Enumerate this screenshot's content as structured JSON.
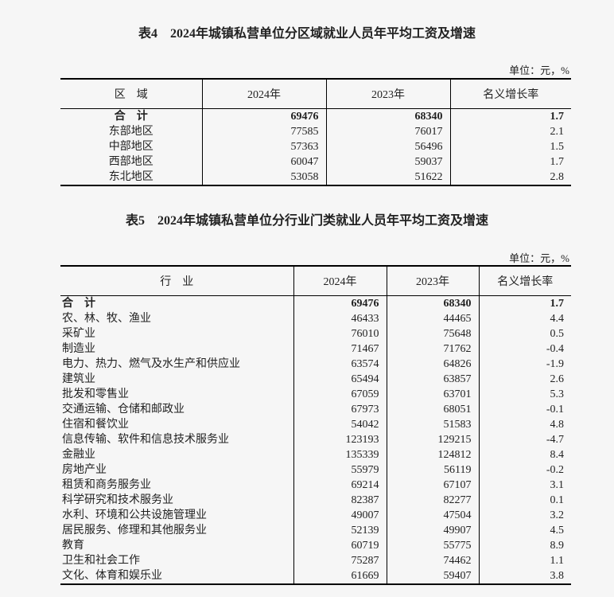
{
  "table4": {
    "title": "表4　2024年城镇私营单位分区域就业人员年平均工资及增速",
    "unit": "单位：元，%",
    "headers": [
      "区　域",
      "2024年",
      "2023年",
      "名义增长率"
    ],
    "rows": [
      [
        "合　计",
        "69476",
        "68340",
        "1.7"
      ],
      [
        "东部地区",
        "77585",
        "76017",
        "2.1"
      ],
      [
        "中部地区",
        "57363",
        "56496",
        "1.5"
      ],
      [
        "西部地区",
        "60047",
        "59037",
        "1.7"
      ],
      [
        "东北地区",
        "53058",
        "51622",
        "2.8"
      ]
    ]
  },
  "table5": {
    "title": "表5　2024年城镇私营单位分行业门类就业人员年平均工资及增速",
    "unit": "单位：元，%",
    "headers": [
      "行　业",
      "2024年",
      "2023年",
      "名义增长率"
    ],
    "rows": [
      [
        "合　计",
        "69476",
        "68340",
        "1.7"
      ],
      [
        "农、林、牧、渔业",
        "46433",
        "44465",
        "4.4"
      ],
      [
        "采矿业",
        "76010",
        "75648",
        "0.5"
      ],
      [
        "制造业",
        "71467",
        "71762",
        "-0.4"
      ],
      [
        "电力、热力、燃气及水生产和供应业",
        "63574",
        "64826",
        "-1.9"
      ],
      [
        "建筑业",
        "65494",
        "63857",
        "2.6"
      ],
      [
        "批发和零售业",
        "67059",
        "63701",
        "5.3"
      ],
      [
        "交通运输、仓储和邮政业",
        "67973",
        "68051",
        "-0.1"
      ],
      [
        "住宿和餐饮业",
        "54042",
        "51583",
        "4.8"
      ],
      [
        "信息传输、软件和信息技术服务业",
        "123193",
        "129215",
        "-4.7"
      ],
      [
        "金融业",
        "135339",
        "124812",
        "8.4"
      ],
      [
        "房地产业",
        "55979",
        "56119",
        "-0.2"
      ],
      [
        "租赁和商务服务业",
        "69214",
        "67107",
        "3.1"
      ],
      [
        "科学研究和技术服务业",
        "82387",
        "82277",
        "0.1"
      ],
      [
        "水利、环境和公共设施管理业",
        "49007",
        "47504",
        "3.2"
      ],
      [
        "居民服务、修理和其他服务业",
        "52139",
        "49907",
        "4.5"
      ],
      [
        "教育",
        "60719",
        "55775",
        "8.9"
      ],
      [
        "卫生和社会工作",
        "75287",
        "74462",
        "1.1"
      ],
      [
        "文化、体育和娱乐业",
        "61669",
        "59407",
        "3.8"
      ]
    ]
  }
}
